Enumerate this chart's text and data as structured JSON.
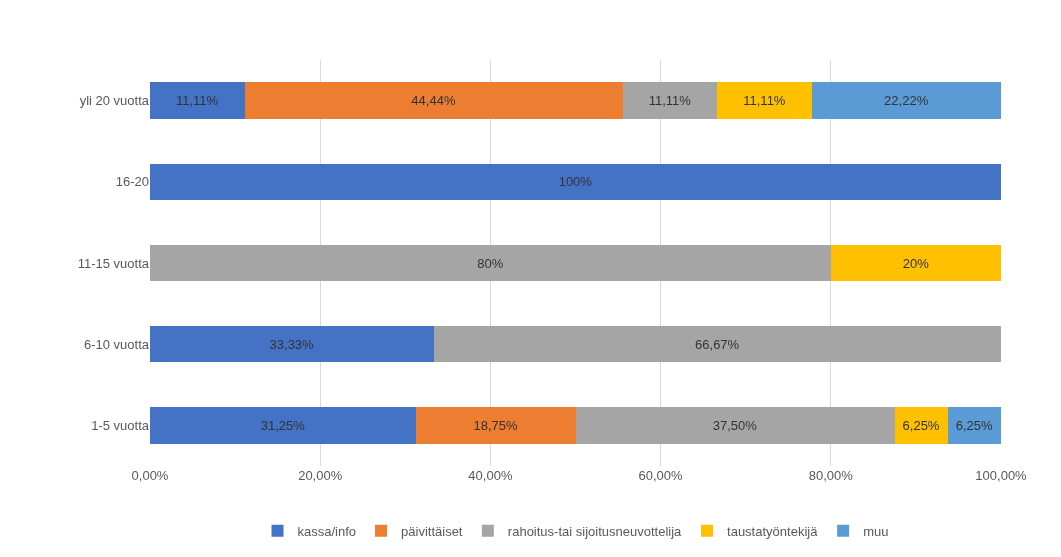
{
  "chart_data": {
    "type": "bar",
    "orientation": "horizontal",
    "stacked": true,
    "categories": [
      "yli 20 vuotta",
      "16-20",
      "11-15 vuotta",
      "6-10 vuotta",
      "1-5 vuotta"
    ],
    "series": [
      {
        "name": "kassa/info",
        "color": "#4472c4",
        "values": [
          11.11,
          100,
          null,
          33.33,
          31.25
        ],
        "value_labels": [
          "11,11%",
          "100%",
          null,
          "33,33%",
          "31,25%"
        ]
      },
      {
        "name": "päivittäiset",
        "color": "#ed7d31",
        "values": [
          44.44,
          null,
          null,
          null,
          18.75
        ],
        "value_labels": [
          "44,44%",
          null,
          null,
          null,
          "18,75%"
        ]
      },
      {
        "name": "rahoitus-tai sijoitusneuvottelija",
        "color": "#a5a5a5",
        "values": [
          11.11,
          null,
          80,
          66.67,
          37.5
        ],
        "value_labels": [
          "11,11%",
          null,
          "80%",
          "66,67%",
          "37,50%"
        ]
      },
      {
        "name": "taustatyöntekijä",
        "color": "#ffc000",
        "values": [
          11.11,
          null,
          20,
          null,
          6.25
        ],
        "value_labels": [
          "11,11%",
          null,
          "20%",
          null,
          "6,25%"
        ]
      },
      {
        "name": "muu",
        "color": "#5b9bd5",
        "values": [
          22.22,
          null,
          null,
          null,
          6.25
        ],
        "value_labels": [
          "22,22%",
          null,
          null,
          null,
          "6,25%"
        ]
      }
    ],
    "xlim": [
      0,
      100
    ],
    "xticks": [
      {
        "value": 0,
        "label": "0,00%"
      },
      {
        "value": 20,
        "label": "20,00%"
      },
      {
        "value": 40,
        "label": "40,00%"
      },
      {
        "value": 60,
        "label": "60,00%"
      },
      {
        "value": 80,
        "label": "80,00%"
      },
      {
        "value": 100,
        "label": "100,00%"
      }
    ],
    "grid": "x",
    "legend": "bottom"
  }
}
